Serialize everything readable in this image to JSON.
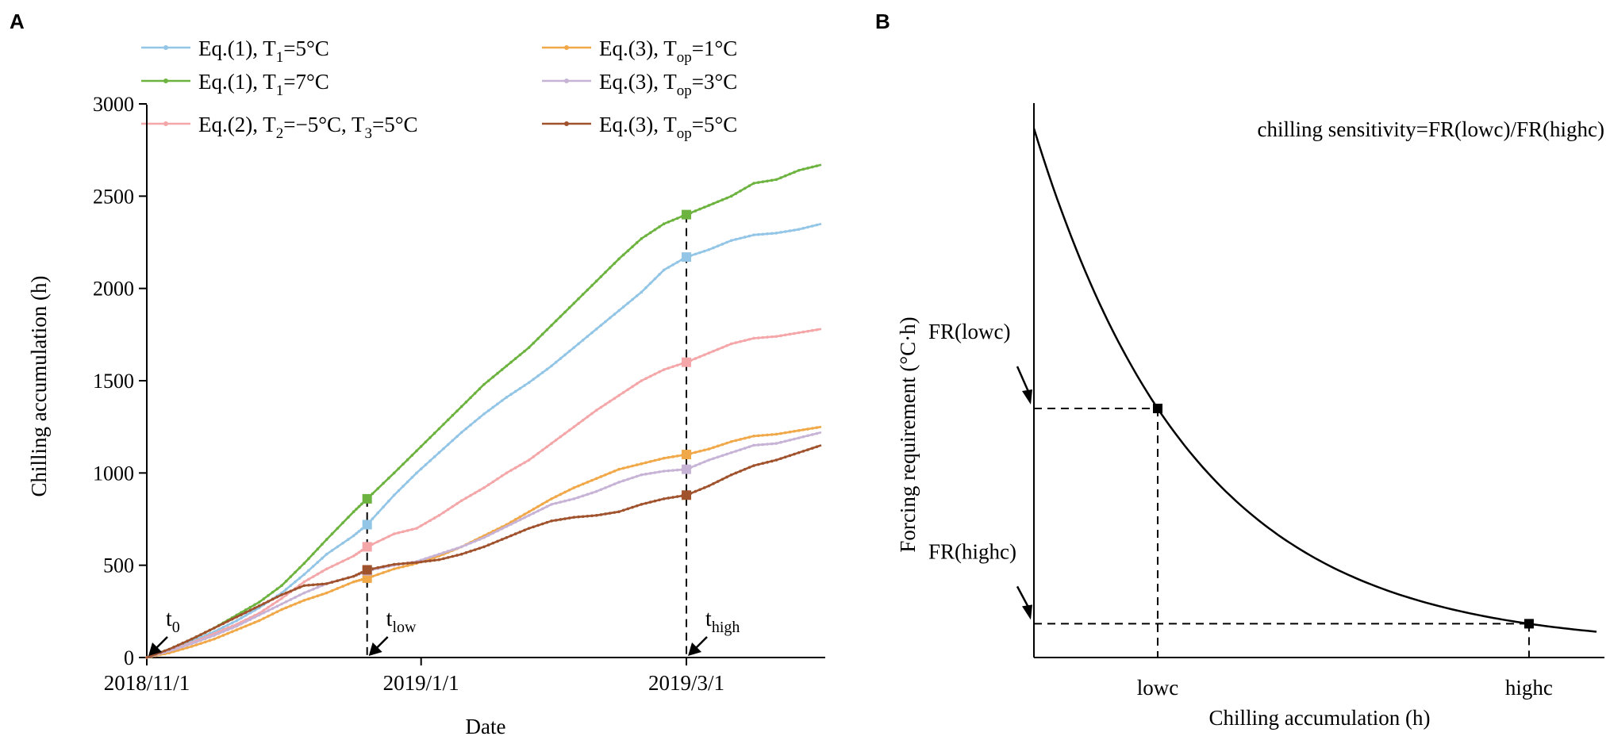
{
  "chart_data": [
    {
      "panel_label": "A",
      "type": "line",
      "xlabel": "Date",
      "ylabel": "Chilling accumulation (h)",
      "ylim": [
        0,
        3000
      ],
      "yticks": [
        0,
        500,
        1000,
        1500,
        2000,
        2500,
        3000
      ],
      "x_range_days": [
        0,
        150
      ],
      "xticks": [
        {
          "day": 0,
          "label": "2018/11/1"
        },
        {
          "day": 61,
          "label": "2019/1/1"
        },
        {
          "day": 120,
          "label": "2019/3/1"
        }
      ],
      "legend_position": "top",
      "series": [
        {
          "id": "s1",
          "name": "Eq.(1), T1=5°C",
          "legend": [
            "Eq.(1), T",
            "1",
            "=5°C"
          ],
          "color": "#92C5E6",
          "points": [
            [
              0,
              0
            ],
            [
              5,
              40
            ],
            [
              10,
              90
            ],
            [
              15,
              140
            ],
            [
              20,
              200
            ],
            [
              25,
              270
            ],
            [
              30,
              350
            ],
            [
              35,
              450
            ],
            [
              40,
              560
            ],
            [
              46,
              660
            ],
            [
              49,
              720
            ],
            [
              55,
              880
            ],
            [
              60,
              1000
            ],
            [
              65,
              1110
            ],
            [
              70,
              1220
            ],
            [
              75,
              1320
            ],
            [
              80,
              1410
            ],
            [
              85,
              1490
            ],
            [
              90,
              1580
            ],
            [
              95,
              1680
            ],
            [
              100,
              1780
            ],
            [
              105,
              1880
            ],
            [
              110,
              1980
            ],
            [
              115,
              2100
            ],
            [
              120,
              2170
            ],
            [
              125,
              2210
            ],
            [
              130,
              2260
            ],
            [
              135,
              2290
            ],
            [
              140,
              2300
            ],
            [
              145,
              2320
            ],
            [
              150,
              2350
            ]
          ],
          "marker_day": 49,
          "marker_value": 720
        },
        {
          "id": "s2",
          "name": "Eq.(1), T1=7°C",
          "legend": [
            "Eq.(1), T",
            "1",
            "=7°C"
          ],
          "color": "#6DB33F",
          "points": [
            [
              0,
              0
            ],
            [
              5,
              45
            ],
            [
              10,
              100
            ],
            [
              15,
              160
            ],
            [
              20,
              230
            ],
            [
              25,
              300
            ],
            [
              30,
              390
            ],
            [
              35,
              510
            ],
            [
              40,
              640
            ],
            [
              46,
              790
            ],
            [
              49,
              860
            ],
            [
              55,
              1000
            ],
            [
              60,
              1120
            ],
            [
              65,
              1240
            ],
            [
              70,
              1360
            ],
            [
              75,
              1480
            ],
            [
              80,
              1580
            ],
            [
              85,
              1680
            ],
            [
              90,
              1800
            ],
            [
              95,
              1920
            ],
            [
              100,
              2040
            ],
            [
              105,
              2160
            ],
            [
              110,
              2270
            ],
            [
              115,
              2350
            ],
            [
              120,
              2400
            ],
            [
              125,
              2450
            ],
            [
              130,
              2500
            ],
            [
              135,
              2570
            ],
            [
              140,
              2590
            ],
            [
              145,
              2640
            ],
            [
              150,
              2670
            ]
          ],
          "marker_day": 49,
          "marker_value": 860
        },
        {
          "id": "s3",
          "name": "Eq.(2), T2=−5°C, T3=5°C",
          "legend": [
            "Eq.(2), T",
            "2",
            "=−5°C, T",
            "3",
            "=5°C"
          ],
          "color": "#F4A6A8",
          "points": [
            [
              0,
              0
            ],
            [
              5,
              35
            ],
            [
              10,
              80
            ],
            [
              15,
              130
            ],
            [
              20,
              180
            ],
            [
              25,
              240
            ],
            [
              30,
              320
            ],
            [
              35,
              410
            ],
            [
              40,
              480
            ],
            [
              46,
              550
            ],
            [
              49,
              600
            ],
            [
              55,
              670
            ],
            [
              60,
              700
            ],
            [
              65,
              770
            ],
            [
              70,
              850
            ],
            [
              75,
              920
            ],
            [
              80,
              1000
            ],
            [
              85,
              1070
            ],
            [
              90,
              1160
            ],
            [
              95,
              1250
            ],
            [
              100,
              1340
            ],
            [
              105,
              1420
            ],
            [
              110,
              1500
            ],
            [
              115,
              1560
            ],
            [
              120,
              1600
            ],
            [
              125,
              1650
            ],
            [
              130,
              1700
            ],
            [
              135,
              1730
            ],
            [
              140,
              1740
            ],
            [
              145,
              1760
            ],
            [
              150,
              1780
            ]
          ],
          "marker_day": 49,
          "marker_value": 600
        },
        {
          "id": "s4",
          "name": "Eq.(3), Top=1°C",
          "legend": [
            "Eq.(3), T",
            "op",
            "=1°C"
          ],
          "color": "#F0A848",
          "points": [
            [
              0,
              0
            ],
            [
              5,
              25
            ],
            [
              10,
              60
            ],
            [
              15,
              100
            ],
            [
              20,
              150
            ],
            [
              25,
              200
            ],
            [
              30,
              260
            ],
            [
              35,
              310
            ],
            [
              40,
              350
            ],
            [
              46,
              410
            ],
            [
              49,
              430
            ],
            [
              55,
              480
            ],
            [
              60,
              510
            ],
            [
              65,
              550
            ],
            [
              70,
              600
            ],
            [
              75,
              660
            ],
            [
              80,
              720
            ],
            [
              85,
              790
            ],
            [
              90,
              860
            ],
            [
              95,
              920
            ],
            [
              100,
              970
            ],
            [
              105,
              1020
            ],
            [
              110,
              1050
            ],
            [
              115,
              1080
            ],
            [
              120,
              1100
            ],
            [
              125,
              1130
            ],
            [
              130,
              1170
            ],
            [
              135,
              1200
            ],
            [
              140,
              1210
            ],
            [
              145,
              1230
            ],
            [
              150,
              1250
            ]
          ],
          "marker_day": 49,
          "marker_value": 430
        },
        {
          "id": "s5",
          "name": "Eq.(3), Top=3°C",
          "legend": [
            "Eq.(3), T",
            "op",
            "=3°C"
          ],
          "color": "#C7B3D6",
          "points": [
            [
              0,
              0
            ],
            [
              5,
              35
            ],
            [
              10,
              75
            ],
            [
              15,
              120
            ],
            [
              20,
              170
            ],
            [
              25,
              230
            ],
            [
              30,
              290
            ],
            [
              35,
              350
            ],
            [
              40,
              400
            ],
            [
              46,
              440
            ],
            [
              49,
              470
            ],
            [
              55,
              500
            ],
            [
              60,
              520
            ],
            [
              65,
              560
            ],
            [
              70,
              600
            ],
            [
              75,
              650
            ],
            [
              80,
              710
            ],
            [
              85,
              770
            ],
            [
              90,
              830
            ],
            [
              95,
              860
            ],
            [
              100,
              900
            ],
            [
              105,
              950
            ],
            [
              110,
              990
            ],
            [
              115,
              1010
            ],
            [
              120,
              1020
            ],
            [
              125,
              1070
            ],
            [
              130,
              1110
            ],
            [
              135,
              1150
            ],
            [
              140,
              1160
            ],
            [
              145,
              1190
            ],
            [
              150,
              1220
            ]
          ],
          "marker_day": 49,
          "marker_value": 470
        },
        {
          "id": "s6",
          "name": "Eq.(3), Top=5°C",
          "legend": [
            "Eq.(3), T",
            "op",
            "=5°C"
          ],
          "color": "#A0522D",
          "points": [
            [
              0,
              0
            ],
            [
              5,
              45
            ],
            [
              10,
              100
            ],
            [
              15,
              160
            ],
            [
              20,
              220
            ],
            [
              25,
              280
            ],
            [
              30,
              340
            ],
            [
              35,
              390
            ],
            [
              40,
              400
            ],
            [
              46,
              440
            ],
            [
              49,
              475
            ],
            [
              55,
              505
            ],
            [
              60,
              515
            ],
            [
              65,
              530
            ],
            [
              70,
              560
            ],
            [
              75,
              600
            ],
            [
              80,
              650
            ],
            [
              85,
              700
            ],
            [
              90,
              740
            ],
            [
              95,
              760
            ],
            [
              100,
              770
            ],
            [
              105,
              790
            ],
            [
              110,
              830
            ],
            [
              115,
              860
            ],
            [
              120,
              880
            ],
            [
              125,
              930
            ],
            [
              130,
              990
            ],
            [
              135,
              1040
            ],
            [
              140,
              1070
            ],
            [
              145,
              1110
            ],
            [
              150,
              1150
            ]
          ],
          "marker_day": 49,
          "marker_value": 475
        }
      ],
      "annotations": [
        {
          "id": "t0",
          "label": "t",
          "sub": "0",
          "day": 0
        },
        {
          "id": "tlow",
          "label": "t",
          "sub": "low",
          "day": 49
        },
        {
          "id": "thigh",
          "label": "t",
          "sub": "high",
          "day": 120
        }
      ]
    },
    {
      "panel_label": "B",
      "type": "line",
      "title": "chilling sensitivity=FR(lowc)/FR(highc)",
      "xlabel": "Chilling accumulation (h)",
      "ylabel": "Forcing requirement (°C·h)",
      "x_range": [
        0,
        1
      ],
      "y_range": [
        0,
        1
      ],
      "curve": {
        "form": "exponential_decay",
        "y0": 1.0,
        "floor": 0.02,
        "k": 3.53
      },
      "points": [
        {
          "id": "lowc",
          "x_label": "lowc",
          "y_label": "FR(lowc)",
          "x": 0.22,
          "y": 0.48
        },
        {
          "id": "highc",
          "x_label": "highc",
          "y_label": "FR(highc)",
          "x": 0.88,
          "y": 0.08
        }
      ]
    }
  ],
  "colors": {
    "axis": "#000000",
    "background": "#ffffff"
  }
}
